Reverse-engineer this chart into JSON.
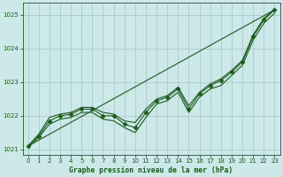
{
  "title": "Graphe pression niveau de la mer (hPa)",
  "background_color": "#cce8e8",
  "plot_bg_color": "#cce8e8",
  "grid_color": "#aacccc",
  "line_color": "#1a5c1a",
  "xlim": [
    -0.5,
    23.5
  ],
  "ylim": [
    1020.85,
    1025.35
  ],
  "yticks": [
    1021,
    1022,
    1023,
    1024,
    1025
  ],
  "xticks": [
    0,
    1,
    2,
    3,
    4,
    5,
    6,
    7,
    8,
    9,
    10,
    11,
    12,
    13,
    14,
    15,
    16,
    17,
    18,
    19,
    20,
    21,
    22,
    23
  ],
  "trend_x": [
    0,
    23
  ],
  "trend_y": [
    1021.1,
    1025.15
  ],
  "main_x": [
    0,
    1,
    2,
    3,
    4,
    5,
    6,
    7,
    8,
    9,
    10,
    11,
    12,
    13,
    14,
    15,
    16,
    17,
    18,
    19,
    20,
    21,
    22,
    23
  ],
  "main_y": [
    1021.1,
    1021.4,
    1021.85,
    1022.0,
    1022.05,
    1022.2,
    1022.2,
    1022.0,
    1022.0,
    1021.75,
    1021.65,
    1022.1,
    1022.45,
    1022.55,
    1022.8,
    1022.2,
    1022.65,
    1022.9,
    1023.05,
    1023.3,
    1023.6,
    1024.35,
    1024.85,
    1025.15
  ],
  "upper_x": [
    0,
    1,
    2,
    3,
    4,
    5,
    6,
    7,
    8,
    9,
    10,
    11,
    12,
    13,
    14,
    15,
    16,
    17,
    18,
    19,
    20,
    21,
    22,
    23
  ],
  "upper_y": [
    1021.1,
    1021.45,
    1021.95,
    1022.05,
    1022.1,
    1022.25,
    1022.25,
    1022.1,
    1022.05,
    1021.85,
    1021.8,
    1022.2,
    1022.5,
    1022.6,
    1022.85,
    1022.3,
    1022.7,
    1022.95,
    1023.1,
    1023.35,
    1023.65,
    1024.4,
    1024.9,
    1025.15
  ],
  "lower_x": [
    0,
    1,
    2,
    3,
    4,
    5,
    6,
    7,
    8,
    9,
    10,
    11,
    12,
    13,
    14,
    15,
    16,
    17,
    18,
    19,
    20,
    21,
    22,
    23
  ],
  "lower_y": [
    1021.05,
    1021.35,
    1021.75,
    1021.9,
    1021.95,
    1022.1,
    1022.1,
    1021.9,
    1021.85,
    1021.65,
    1021.5,
    1021.95,
    1022.35,
    1022.45,
    1022.7,
    1022.1,
    1022.55,
    1022.8,
    1022.9,
    1023.2,
    1023.5,
    1024.25,
    1024.75,
    1025.05
  ],
  "marker": "D",
  "markersize": 2.5,
  "linewidth": 0.8
}
